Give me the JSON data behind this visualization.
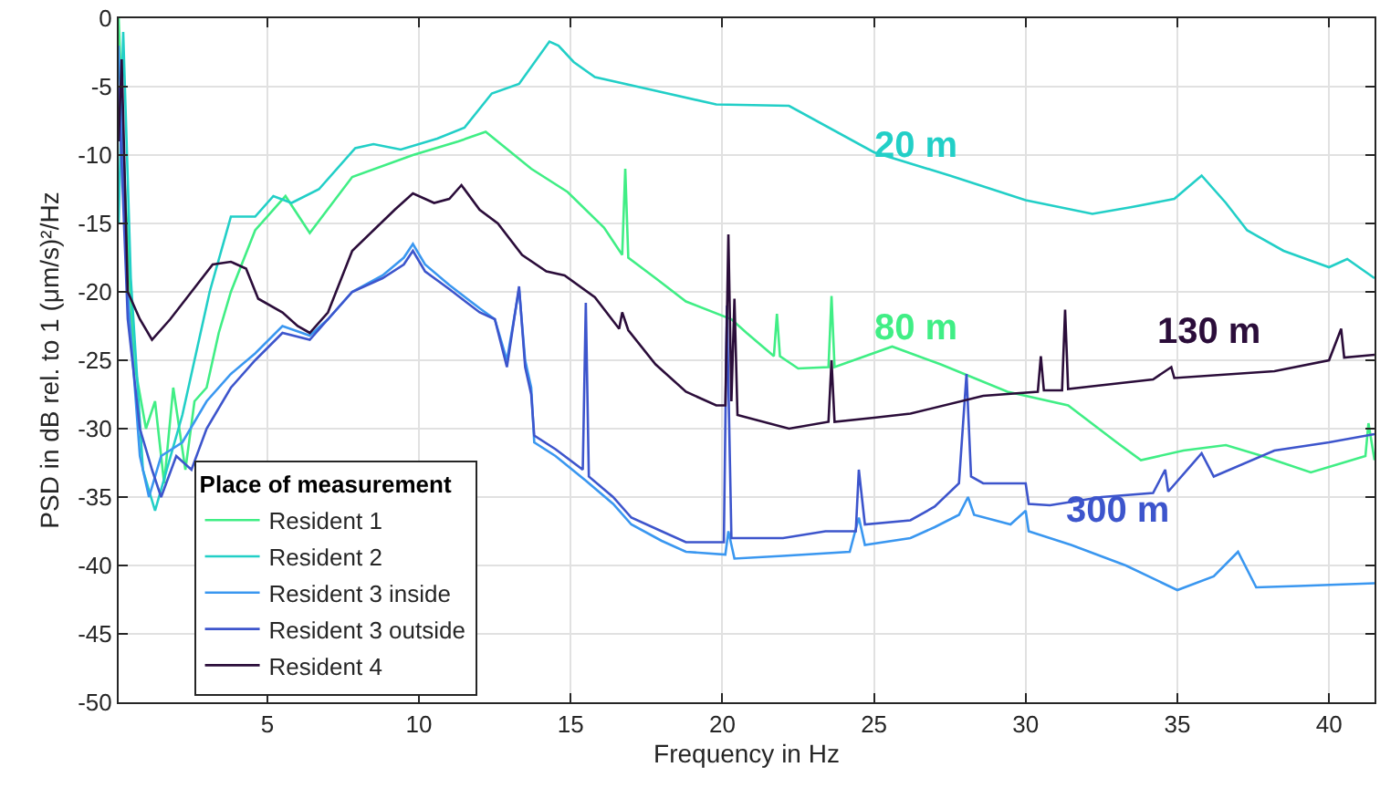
{
  "chart_data": {
    "type": "line",
    "xlabel": "Frequency in Hz",
    "ylabel": "PSD in dB rel. to 1 (μm/s)²/Hz",
    "legend_title": "Place of measurement",
    "legend": "bottom left",
    "grid": true,
    "marker": "none",
    "line_style": "solid",
    "xlim": [
      0.1,
      41.5
    ],
    "xticks": [
      5,
      10,
      15,
      20,
      25,
      30,
      35,
      40
    ],
    "ylim": [
      -50,
      0
    ],
    "yticks": [
      -50,
      -45,
      -40,
      -35,
      -30,
      -25,
      -20,
      -15,
      -10,
      -5,
      0
    ],
    "series": [
      {
        "name": "Resident 1",
        "color": "#40ee85",
        "x": [
          0.1,
          0.3,
          0.6,
          1,
          1.3,
          1.6,
          1.9,
          2.3,
          2.6,
          3,
          3.4,
          3.8,
          4.6,
          5.6,
          6.4,
          7.8,
          9.8,
          11.3,
          12.2,
          13.7,
          14.9,
          16.1,
          16.7,
          16.8,
          16.9,
          17.8,
          18.8,
          20.3,
          20.8,
          21.7,
          21.8,
          21.9,
          22.5,
          23.5,
          23.6,
          23.7,
          25.6,
          27.2,
          29.4,
          31.4,
          33,
          33.8,
          35.2,
          36.6,
          37.8,
          39.4,
          41.2,
          41.3,
          41.5
        ],
        "values": [
          0,
          -12,
          -25,
          -30,
          -28,
          -34,
          -27,
          -33,
          -28,
          -27,
          -23,
          -20,
          -15.5,
          -13,
          -15.7,
          -11.6,
          -10,
          -9,
          -8.3,
          -11,
          -12.7,
          -15.3,
          -17.3,
          -11,
          -17.5,
          -19,
          -20.7,
          -22,
          -23,
          -24.7,
          -21.6,
          -24.7,
          -25.6,
          -25.5,
          -20.3,
          -25.5,
          -24,
          -25.3,
          -27.3,
          -28.3,
          -31,
          -32.3,
          -31.6,
          -31.2,
          -32,
          -33.2,
          -32,
          -29.6,
          -32.3
        ]
      },
      {
        "name": "Resident 2",
        "color": "#22cfc7",
        "x": [
          0.1,
          0.25,
          0.5,
          0.9,
          1.3,
          2.2,
          3.1,
          3.8,
          4.6,
          5.2,
          5.8,
          6.7,
          7.9,
          8.5,
          9.4,
          10.6,
          11.5,
          12.4,
          13.3,
          14.3,
          14.6,
          15.1,
          15.8,
          17.8,
          19.8,
          22.2,
          25,
          27.5,
          30,
          32.2,
          33.5,
          34.9,
          35.8,
          36.6,
          37.3,
          38.5,
          40,
          40.6,
          41.5
        ],
        "values": [
          -15,
          -1,
          -19,
          -33,
          -36,
          -29,
          -20,
          -14.5,
          -14.5,
          -13,
          -13.5,
          -12.5,
          -9.5,
          -9.2,
          -9.6,
          -8.8,
          -8,
          -5.5,
          -4.8,
          -1.7,
          -2,
          -3.2,
          -4.3,
          -5.3,
          -6.3,
          -6.4,
          -9.8,
          -11.5,
          -13.3,
          -14.3,
          -13.8,
          -13.2,
          -11.5,
          -13.5,
          -15.5,
          -17,
          -18.2,
          -17.6,
          -19
        ]
      },
      {
        "name": "Resident 3 inside",
        "color": "#3a97f0",
        "x": [
          0.1,
          0.4,
          0.8,
          1.1,
          1.5,
          2.2,
          3,
          3.8,
          4.6,
          5.5,
          6.4,
          7,
          7.8,
          8.8,
          9.5,
          9.8,
          10.2,
          11,
          12,
          12.5,
          12.9,
          13.3,
          13.5,
          13.7,
          13.8,
          14.5,
          15.5,
          16.4,
          17,
          18,
          18.8,
          20.1,
          20.2,
          20.4,
          22,
          24.2,
          24.5,
          24.7,
          26.2,
          27,
          27.8,
          28.1,
          28.3,
          29.5,
          30,
          30.1,
          31.5,
          33.3,
          35,
          36.2,
          37,
          37.6,
          39,
          41.5
        ],
        "values": [
          -2,
          -20,
          -32,
          -35,
          -32,
          -31,
          -28,
          -26,
          -24.5,
          -22.5,
          -23.2,
          -22,
          -20,
          -18.8,
          -17.5,
          -16.5,
          -18,
          -19.5,
          -21.2,
          -22,
          -25,
          -19.8,
          -25,
          -27,
          -31,
          -32,
          -33.8,
          -35.5,
          -37,
          -38.2,
          -39,
          -39.2,
          -37.5,
          -39.5,
          -39.3,
          -39,
          -36.5,
          -38.5,
          -38,
          -37.2,
          -36.3,
          -35,
          -36.3,
          -37,
          -36,
          -37.5,
          -38.5,
          -40,
          -41.8,
          -40.8,
          -39,
          -41.6,
          -41.5,
          -41.3
        ]
      },
      {
        "name": "Resident 3 outside",
        "color": "#3d55cc",
        "x": [
          0.1,
          0.4,
          0.8,
          1.2,
          1.5,
          2,
          2.5,
          3,
          3.8,
          4.6,
          5.5,
          6.4,
          7,
          7.8,
          8.8,
          9.5,
          9.8,
          10.2,
          11,
          12,
          12.5,
          12.9,
          13.3,
          13.5,
          13.7,
          13.8,
          14.5,
          15.4,
          15.5,
          15.6,
          16.4,
          17,
          18,
          18.8,
          20.05,
          20.15,
          20.3,
          22,
          23.4,
          24.4,
          24.5,
          24.7,
          26.2,
          27,
          27.8,
          28.05,
          28.2,
          28.6,
          30,
          30.1,
          30.8,
          32.5,
          34.2,
          34.6,
          34.7,
          35.8,
          36.2,
          38.2,
          40,
          41.5
        ],
        "values": [
          -5,
          -22,
          -30,
          -33,
          -35,
          -32,
          -33,
          -30,
          -27,
          -25,
          -23,
          -23.5,
          -22,
          -20,
          -19,
          -18,
          -17,
          -18.5,
          -19.8,
          -21.5,
          -22,
          -25.5,
          -19.6,
          -25.5,
          -27.5,
          -30.5,
          -31.5,
          -33,
          -20.8,
          -33.5,
          -35,
          -36.5,
          -37.5,
          -38.3,
          -38.3,
          -21,
          -38,
          -38,
          -37.5,
          -37.5,
          -33,
          -37,
          -36.7,
          -35.7,
          -34,
          -26,
          -33.5,
          -34,
          -34,
          -35.5,
          -35.6,
          -35,
          -34.7,
          -33,
          -34.6,
          -31.8,
          -33.5,
          -31.6,
          -31,
          -30.4
        ]
      },
      {
        "name": "Resident 4",
        "color": "#2b0d3a",
        "x": [
          0.1,
          0.2,
          0.4,
          0.8,
          1.2,
          1.8,
          2.5,
          3.2,
          3.8,
          4.3,
          4.7,
          5.5,
          6,
          6.4,
          7,
          7.8,
          8.5,
          9.2,
          9.8,
          10.5,
          11,
          11.4,
          12,
          12.6,
          13.4,
          14.2,
          14.8,
          15.8,
          16.6,
          16.7,
          16.9,
          17.8,
          18.8,
          19.8,
          20.1,
          20.2,
          20.3,
          20.4,
          20.5,
          22.2,
          23.5,
          23.6,
          23.7,
          25,
          26.2,
          28.6,
          30.4,
          30.5,
          30.6,
          31.2,
          31.3,
          31.4,
          32.2,
          34.2,
          34.8,
          34.9,
          38.2,
          40,
          40.4,
          40.5,
          41.5
        ],
        "values": [
          -9,
          -3,
          -20,
          -22,
          -23.5,
          -22,
          -20,
          -18,
          -17.8,
          -18.3,
          -20.5,
          -21.5,
          -22.5,
          -23,
          -21.5,
          -17,
          -15.5,
          -14,
          -12.8,
          -13.5,
          -13.2,
          -12.2,
          -14,
          -15,
          -17.3,
          -18.5,
          -18.8,
          -20.4,
          -22.7,
          -21.5,
          -22.8,
          -25.3,
          -27.3,
          -28.3,
          -28.3,
          -15.8,
          -28,
          -20.5,
          -29,
          -30,
          -29.5,
          -25,
          -29.5,
          -29.2,
          -28.9,
          -27.6,
          -27.3,
          -24.7,
          -27.2,
          -27.2,
          -21.3,
          -27.1,
          -26.9,
          -26.4,
          -25.5,
          -26.3,
          -25.8,
          -25,
          -22.7,
          -24.8,
          -24.6
        ]
      }
    ],
    "annotations": [
      "20 m",
      "80 m",
      "130 m",
      "300 m"
    ]
  }
}
